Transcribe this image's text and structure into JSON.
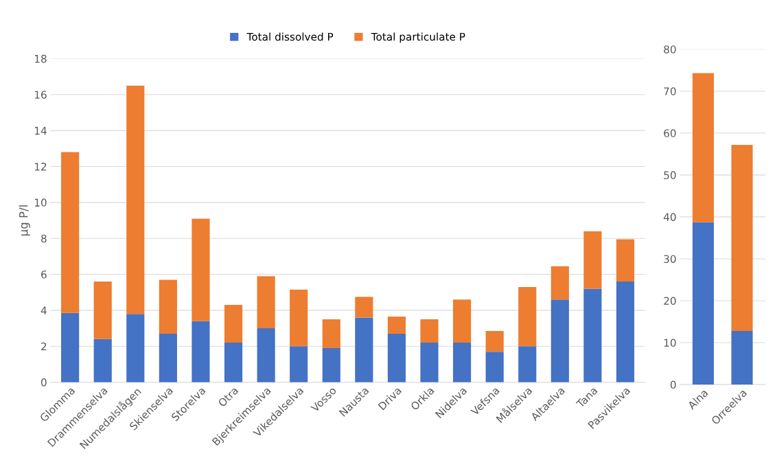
{
  "chart_data": [
    {
      "type": "bar",
      "stacked": true,
      "ylabel": "µg P/l",
      "categories": [
        "Glomma",
        "Drammenselva",
        "Numedalslågen",
        "Skienselva",
        "Storelva",
        "Otra",
        "Bjerkreimselva",
        "Vikedalselva",
        "Vosso",
        "Nausta",
        "Driva",
        "Orkla",
        "Nidelva",
        "Vefsna",
        "Målselva",
        "Altaelva",
        "Tana",
        "Pasvikelva"
      ],
      "series": [
        {
          "name": "Total dissolved P",
          "color": "#4472c4",
          "values": [
            3.85,
            2.4,
            3.8,
            2.7,
            3.4,
            2.2,
            3.0,
            2.0,
            1.9,
            3.6,
            2.7,
            2.2,
            2.2,
            1.7,
            2.0,
            4.6,
            5.2,
            5.6
          ]
        },
        {
          "name": "Total particulate P",
          "color": "#ed7d31",
          "values": [
            8.95,
            3.2,
            12.7,
            3.0,
            5.7,
            2.1,
            2.9,
            3.15,
            1.6,
            1.15,
            0.95,
            1.3,
            2.4,
            1.15,
            3.3,
            1.85,
            3.2,
            2.35
          ]
        }
      ],
      "ylim": [
        0,
        18
      ],
      "yticks": [
        0,
        2,
        4,
        6,
        8,
        10,
        12,
        14,
        16,
        18
      ],
      "grid": "y",
      "legend": "top"
    },
    {
      "type": "bar",
      "stacked": true,
      "categories": [
        "Alna",
        "Orreelva"
      ],
      "series": [
        {
          "color": "#4472c4",
          "values": [
            38.7,
            12.8
          ]
        },
        {
          "color": "#ed7d31",
          "values": [
            35.6,
            44.4
          ]
        }
      ],
      "ylim": [
        0,
        80
      ],
      "yticks": [
        0,
        10,
        20,
        30,
        40,
        50,
        60,
        70,
        80
      ],
      "grid": "y"
    }
  ]
}
